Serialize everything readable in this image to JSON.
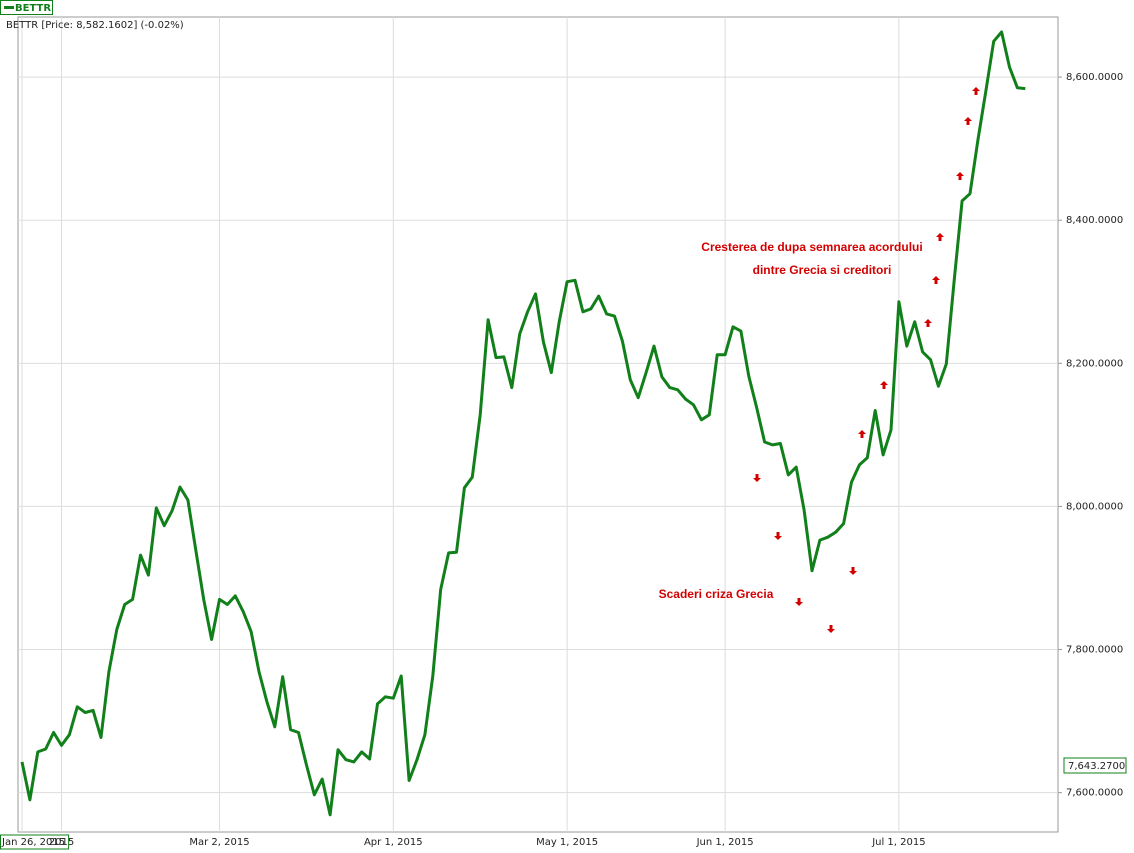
{
  "chart_data": {
    "type": "line",
    "legend": "BETTR",
    "header": "BETTR [Price: 8,582.1602] (-0.02%)",
    "price_tag": "7,643.2700",
    "annotations": [
      "Cresterea de dupa semnarea acordului",
      "dintre Grecia si creditori",
      "Scaderi criza Grecia"
    ],
    "categories": [
      "Jan 26, 2015",
      null,
      null,
      null,
      null,
      "2015",
      null,
      null,
      null,
      null,
      null,
      null,
      null,
      null,
      null,
      null,
      null,
      null,
      null,
      null,
      null,
      null,
      null,
      null,
      null,
      "Mar 2, 2015",
      null,
      null,
      null,
      null,
      null,
      null,
      null,
      null,
      null,
      null,
      null,
      null,
      null,
      null,
      null,
      null,
      null,
      null,
      null,
      null,
      null,
      "Apr 1, 2015",
      null,
      null,
      null,
      null,
      null,
      null,
      null,
      null,
      null,
      null,
      null,
      null,
      null,
      null,
      null,
      null,
      null,
      null,
      null,
      null,
      null,
      "May 1, 2015",
      null,
      null,
      null,
      null,
      null,
      null,
      null,
      null,
      null,
      null,
      null,
      null,
      null,
      null,
      null,
      null,
      null,
      null,
      null,
      "Jun 1, 2015",
      null,
      null,
      null,
      null,
      null,
      null,
      null,
      null,
      null,
      null,
      null,
      null,
      null,
      null,
      null,
      null,
      null,
      null,
      null,
      null,
      null,
      "Jul 1, 2015",
      null,
      null,
      null,
      null,
      null,
      null,
      null,
      null,
      null,
      null,
      null,
      null,
      null,
      null,
      null,
      null
    ],
    "series": [
      {
        "name": "BETTR",
        "color": "#11801a",
        "values": [
          7643,
          7590,
          7657,
          7661,
          7684,
          7666,
          7681,
          7720,
          7712,
          7715,
          7677,
          7769,
          7828,
          7863,
          7870,
          7932,
          7904,
          7998,
          7973,
          7994,
          8027,
          8009,
          7939,
          7870,
          7814,
          7870,
          7863,
          7875,
          7853,
          7825,
          7769,
          7727,
          7692,
          7762,
          7688,
          7684,
          7639,
          7597,
          7619,
          7569,
          7660,
          7646,
          7643,
          7657,
          7647,
          7724,
          7734,
          7732,
          7763,
          7617,
          7646,
          7681,
          7763,
          7884,
          7935,
          7936,
          8026,
          8041,
          8128,
          8261,
          8208,
          8209,
          8166,
          8241,
          8272,
          8297,
          8230,
          8187,
          8258,
          8314,
          8316,
          8272,
          8276,
          8294,
          8269,
          8266,
          8231,
          8177,
          8152,
          8187,
          8224,
          8181,
          8166,
          8163,
          8150,
          8142,
          8121,
          8128,
          8212,
          8212,
          8251,
          8245,
          8182,
          8138,
          8090,
          8086,
          8088,
          8044,
          8055,
          7995,
          7910,
          7953,
          7957,
          7964,
          7976,
          8034,
          8058,
          8068,
          8134,
          8072,
          8107,
          8286,
          8224,
          8258,
          8216,
          8205,
          8168,
          8199,
          8316,
          8427,
          8437,
          8512,
          8580,
          8650,
          8663,
          8614,
          8585,
          8584
        ]
      }
    ],
    "ylim": [
      7545,
      8684
    ],
    "yticks": [
      {
        "value": 7600,
        "label": "7,600.0000"
      },
      {
        "value": 7800,
        "label": "7,800.0000"
      },
      {
        "value": 8000,
        "label": "8,000.0000"
      },
      {
        "value": 8200,
        "label": "8,200.0000"
      },
      {
        "value": 8400,
        "label": "8,400.0000"
      },
      {
        "value": 8600,
        "label": "8,600.0000"
      }
    ],
    "grid": true
  }
}
